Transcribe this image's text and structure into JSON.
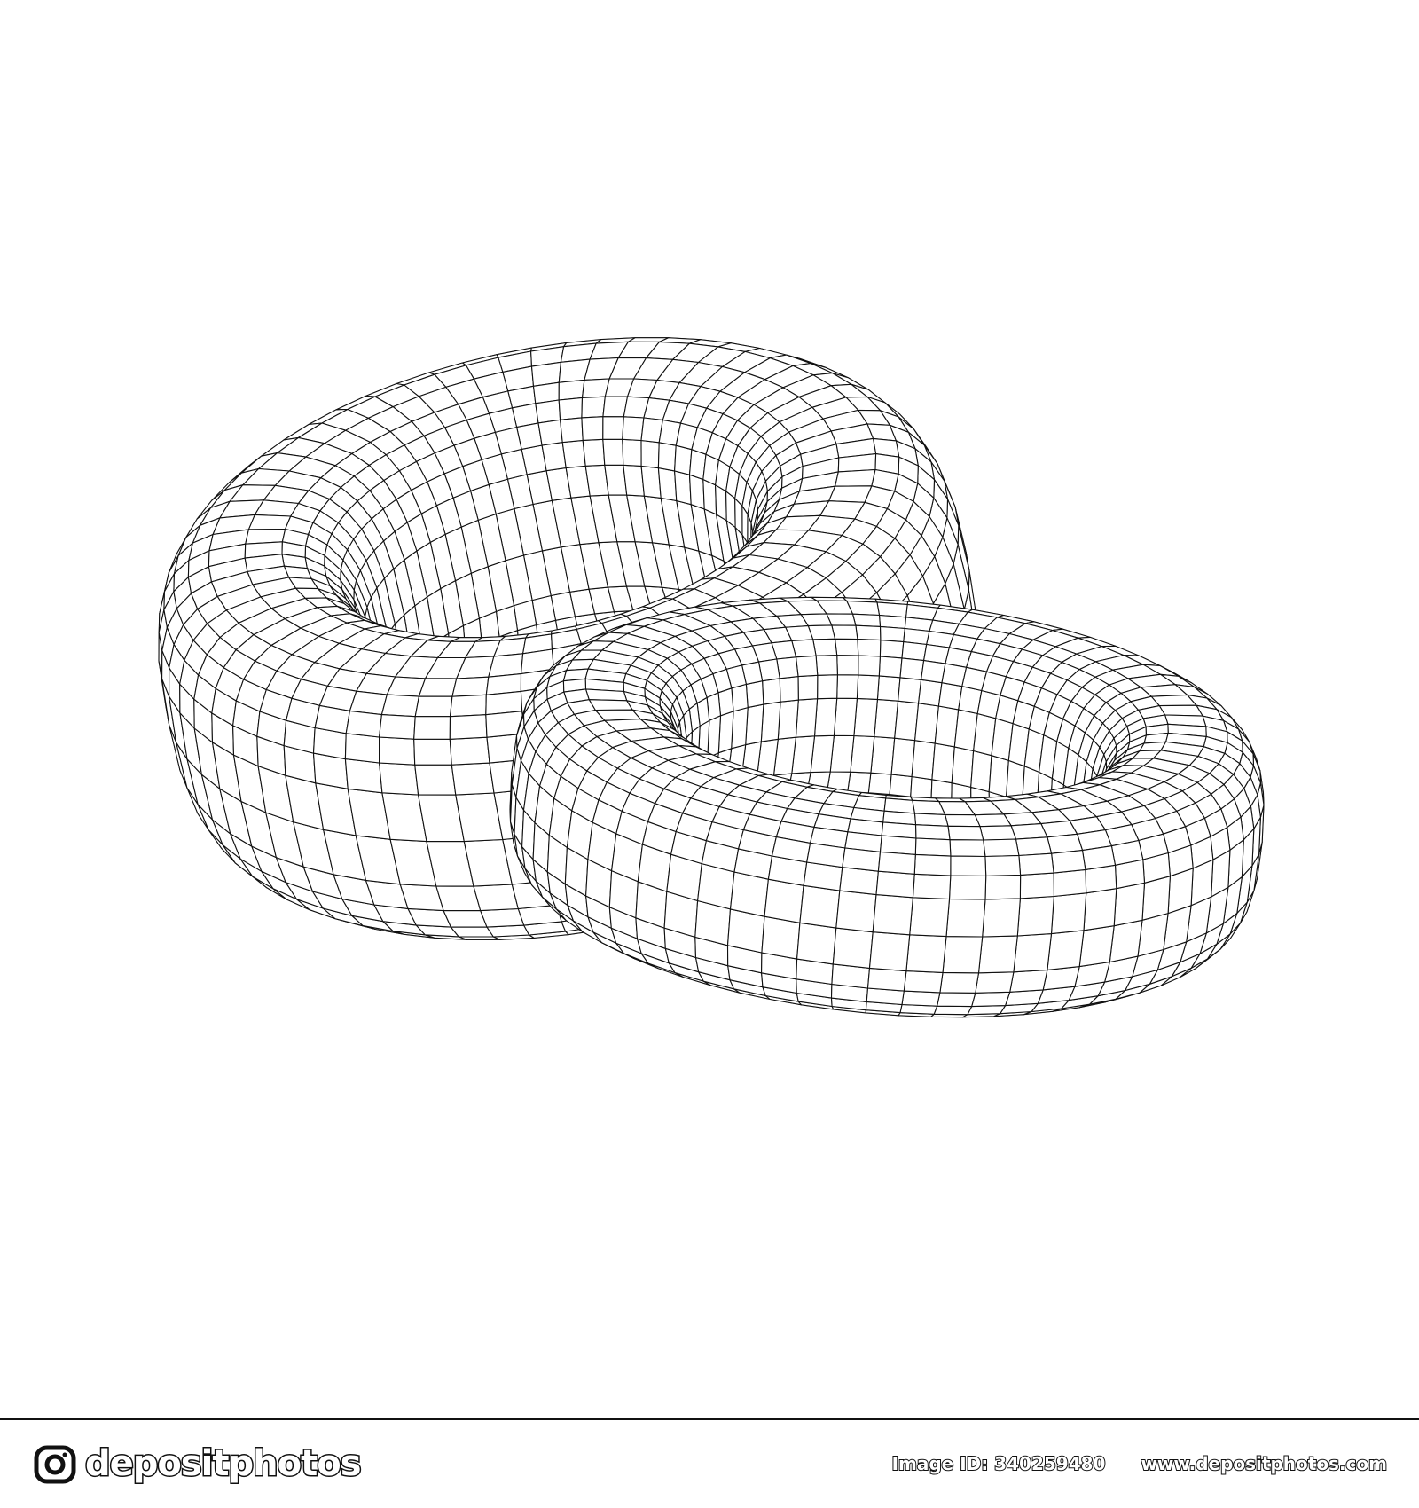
{
  "footer": {
    "brand_name": "depositphotos",
    "image_id": "Image ID: 340259480",
    "site_url": "www.depositphotos.com",
    "logo_icon": "camera-icon"
  },
  "colors": {
    "background": "#ffffff",
    "line": "#111111"
  }
}
